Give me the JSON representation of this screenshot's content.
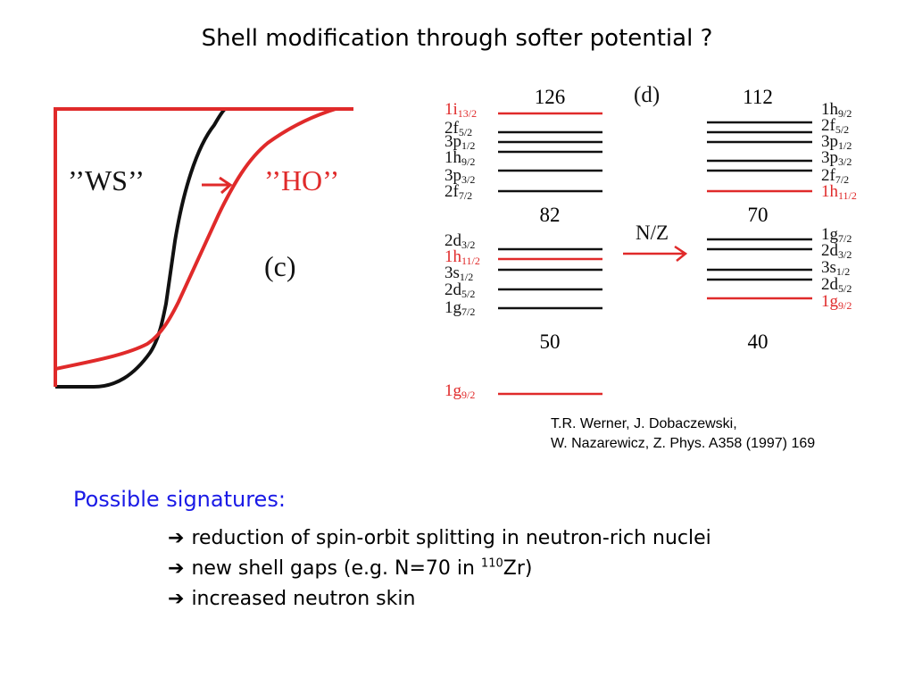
{
  "title": "Shell modification through softer potential ?",
  "panel_c": {
    "ws_label": "’’WS’’",
    "ho_label": "’’HO’’",
    "panel_tag": "(c)"
  },
  "panel_d": {
    "panel_tag": "(d)",
    "arrow_label": "N/Z",
    "left_magic": [
      "126",
      "82",
      "50"
    ],
    "right_magic": [
      "112",
      "70",
      "40"
    ],
    "left_upper": [
      {
        "n": "1i",
        "j": "13/2",
        "color": "red"
      },
      {
        "n": "2f",
        "j": "5/2",
        "color": "black"
      },
      {
        "n": "3p",
        "j": "1/2",
        "color": "black"
      },
      {
        "n": "1h",
        "j": "9/2",
        "color": "black"
      },
      {
        "n": "3p",
        "j": "3/2",
        "color": "black"
      },
      {
        "n": "2f",
        "j": "7/2",
        "color": "black"
      }
    ],
    "left_middle": [
      {
        "n": "2d",
        "j": "3/2",
        "color": "black"
      },
      {
        "n": "1h",
        "j": "11/2",
        "color": "red"
      },
      {
        "n": "3s",
        "j": "1/2",
        "color": "black"
      },
      {
        "n": "2d",
        "j": "5/2",
        "color": "black"
      },
      {
        "n": "1g",
        "j": "7/2",
        "color": "black"
      }
    ],
    "left_lower": [
      {
        "n": "1g",
        "j": "9/2",
        "color": "red"
      }
    ],
    "right_upper": [
      {
        "n": "1h",
        "j": "9/2",
        "color": "black"
      },
      {
        "n": "2f",
        "j": "5/2",
        "color": "black"
      },
      {
        "n": "3p",
        "j": "1/2",
        "color": "black"
      },
      {
        "n": "3p",
        "j": "3/2",
        "color": "black"
      },
      {
        "n": "2f",
        "j": "7/2",
        "color": "black"
      },
      {
        "n": "1h",
        "j": "11/2",
        "color": "red"
      }
    ],
    "right_middle": [
      {
        "n": "1g",
        "j": "7/2",
        "color": "black"
      },
      {
        "n": "2d",
        "j": "3/2",
        "color": "black"
      },
      {
        "n": "3s",
        "j": "1/2",
        "color": "black"
      },
      {
        "n": "2d",
        "j": "5/2",
        "color": "black"
      },
      {
        "n": "1g",
        "j": "9/2",
        "color": "red"
      }
    ]
  },
  "reference": {
    "line1": "T.R. Werner, J. Dobaczewski,",
    "line2": "W. Nazarewicz,  Z. Phys. A358 (1997) 169"
  },
  "signatures": {
    "heading": "Possible signatures:",
    "arrow_glyph": "➔",
    "item1": "reduction of spin-orbit splitting in neutron-rich nuclei",
    "item2_pre": "new shell gaps (e.g. N=70 in ",
    "item2_sup": "110",
    "item2_post": "Zr)",
    "item3": "increased neutron skin"
  },
  "colors": {
    "red": "#e02a2a",
    "black": "#111111",
    "blue": "#1a1ae6"
  }
}
